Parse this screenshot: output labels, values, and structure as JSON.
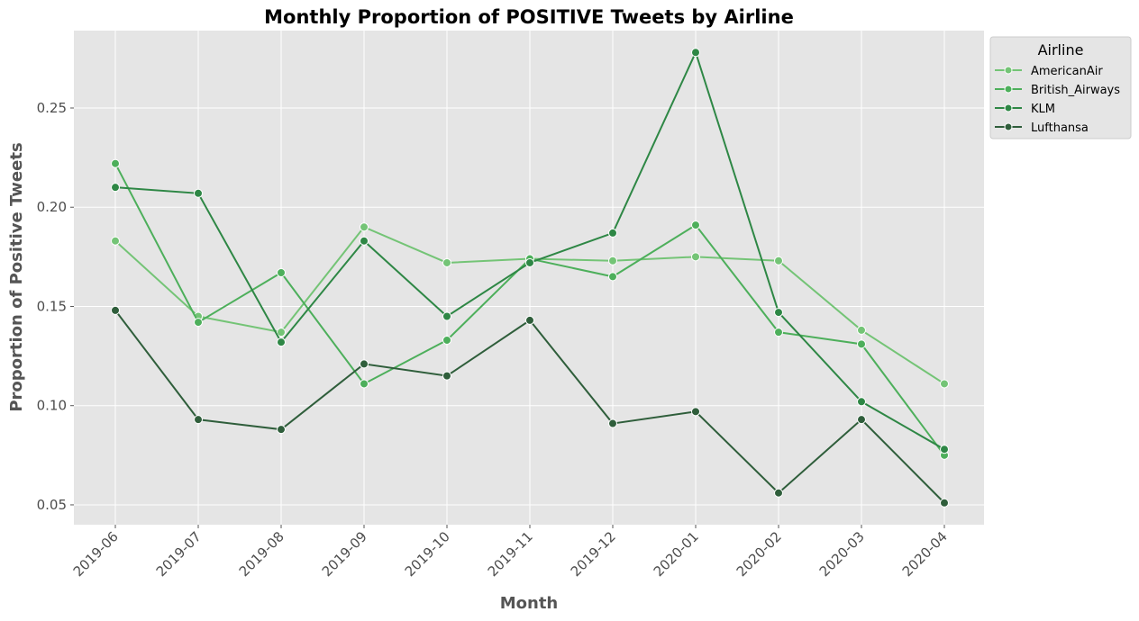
{
  "chart_data": {
    "type": "line",
    "title": "Monthly Proportion of POSITIVE Tweets by Airline",
    "xlabel": "Month",
    "ylabel": "Proportion of Positive Tweets",
    "categories": [
      "2019-06",
      "2019-07",
      "2019-08",
      "2019-09",
      "2019-10",
      "2019-11",
      "2019-12",
      "2020-01",
      "2020-02",
      "2020-03",
      "2020-04"
    ],
    "yticks": [
      0.05,
      0.1,
      0.15,
      0.2,
      0.25
    ],
    "ytick_labels": [
      "0.05",
      "0.10",
      "0.15",
      "0.20",
      "0.25"
    ],
    "ylim": [
      0.04,
      0.289
    ],
    "grid": true,
    "legend_title": "Airline",
    "legend_position": "outside-top-right",
    "series": [
      {
        "name": "AmericanAir",
        "color": "#74c476",
        "values": [
          0.183,
          0.145,
          0.137,
          0.19,
          0.172,
          0.174,
          0.173,
          0.175,
          0.173,
          0.138,
          0.111
        ]
      },
      {
        "name": "British_Airways",
        "color": "#4daf5b",
        "values": [
          0.222,
          0.142,
          0.167,
          0.111,
          0.133,
          0.174,
          0.165,
          0.191,
          0.137,
          0.131,
          0.075
        ]
      },
      {
        "name": "KLM",
        "color": "#2e8745",
        "values": [
          0.21,
          0.207,
          0.132,
          0.183,
          0.145,
          0.172,
          0.187,
          0.278,
          0.147,
          0.102,
          0.078
        ]
      },
      {
        "name": "Lufthansa",
        "color": "#2f5e3b",
        "values": [
          0.148,
          0.093,
          0.088,
          0.121,
          0.115,
          0.143,
          0.091,
          0.097,
          0.056,
          0.093,
          0.051
        ]
      }
    ]
  }
}
